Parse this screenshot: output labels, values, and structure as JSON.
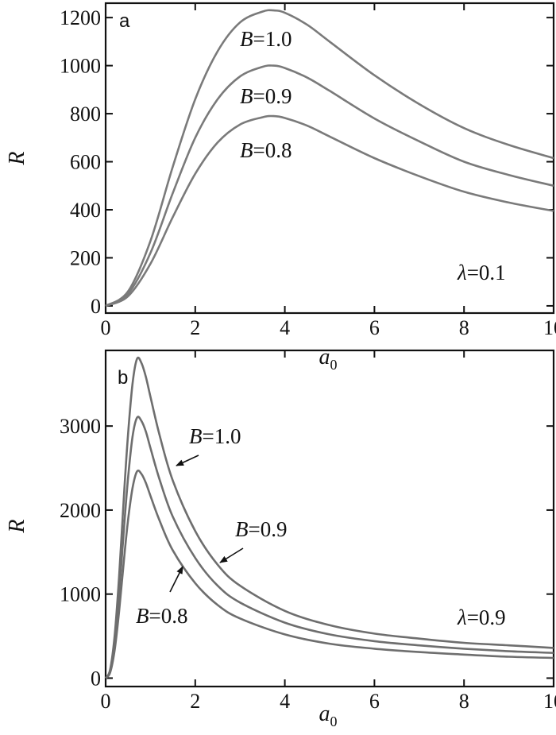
{
  "chart_data": [
    {
      "type": "line",
      "panel": "a",
      "xlabel": "a",
      "xlabel_sub": "0",
      "ylabel": "R",
      "xlim": [
        0,
        10
      ],
      "ylim": [
        -30,
        1260
      ],
      "xticks": [
        0,
        2,
        4,
        6,
        8,
        10
      ],
      "yticks": [
        0,
        200,
        400,
        600,
        800,
        1000,
        1200
      ],
      "grid": false,
      "parameter_label": {
        "symbol": "λ",
        "text": "=0.1"
      },
      "series": [
        {
          "name": "B=1.0",
          "label_symbol": "B",
          "label_value": "=1.0",
          "x": [
            0,
            0.5,
            1,
            1.5,
            2,
            2.5,
            3,
            3.5,
            3.75,
            4,
            4.5,
            5,
            6,
            7,
            8,
            9,
            10
          ],
          "y": [
            0,
            60,
            270,
            580,
            860,
            1060,
            1180,
            1225,
            1230,
            1220,
            1170,
            1100,
            960,
            840,
            740,
            670,
            615
          ]
        },
        {
          "name": "B=0.9",
          "label_symbol": "B",
          "label_value": "=0.9",
          "x": [
            0,
            0.5,
            1,
            1.5,
            2,
            2.5,
            3,
            3.5,
            3.75,
            4,
            4.5,
            5,
            6,
            7,
            8,
            9,
            10
          ],
          "y": [
            0,
            50,
            220,
            470,
            700,
            860,
            955,
            995,
            1000,
            990,
            950,
            895,
            780,
            685,
            600,
            545,
            500
          ]
        },
        {
          "name": "B=0.8",
          "label_symbol": "B",
          "label_value": "=0.8",
          "x": [
            0,
            0.5,
            1,
            1.5,
            2,
            2.5,
            3,
            3.5,
            3.75,
            4,
            4.5,
            5,
            6,
            7,
            8,
            9,
            10
          ],
          "y": [
            0,
            40,
            175,
            370,
            550,
            680,
            755,
            785,
            790,
            782,
            750,
            705,
            615,
            540,
            475,
            430,
            395
          ]
        }
      ]
    },
    {
      "type": "line",
      "panel": "b",
      "xlabel": "a",
      "xlabel_sub": "0",
      "ylabel": "R",
      "xlim": [
        0,
        10
      ],
      "ylim": [
        -100,
        3900
      ],
      "xticks": [
        0,
        2,
        4,
        6,
        8,
        10
      ],
      "yticks": [
        0,
        1000,
        2000,
        3000
      ],
      "grid": false,
      "parameter_label": {
        "symbol": "λ",
        "text": "=0.9"
      },
      "series": [
        {
          "name": "B=1.0",
          "label_symbol": "B",
          "label_value": "=1.0",
          "x": [
            0,
            0.1,
            0.2,
            0.3,
            0.4,
            0.5,
            0.6,
            0.7,
            0.8,
            0.9,
            1.0,
            1.2,
            1.5,
            2,
            2.5,
            3,
            4,
            5,
            6,
            7,
            8,
            9,
            10
          ],
          "y": [
            0,
            100,
            500,
            1200,
            2100,
            2900,
            3500,
            3800,
            3750,
            3580,
            3350,
            2900,
            2350,
            1750,
            1350,
            1100,
            800,
            630,
            530,
            470,
            420,
            390,
            360
          ]
        },
        {
          "name": "B=0.9",
          "label_symbol": "B",
          "label_value": "=0.9",
          "x": [
            0,
            0.1,
            0.2,
            0.3,
            0.4,
            0.5,
            0.6,
            0.7,
            0.8,
            0.9,
            1.0,
            1.2,
            1.5,
            2,
            2.5,
            3,
            4,
            5,
            6,
            7,
            8,
            9,
            10
          ],
          "y": [
            0,
            80,
            420,
            1000,
            1720,
            2380,
            2870,
            3100,
            3060,
            2930,
            2740,
            2370,
            1920,
            1430,
            1100,
            900,
            660,
            520,
            440,
            390,
            350,
            320,
            300
          ]
        },
        {
          "name": "B=0.8",
          "label_symbol": "B",
          "label_value": "=0.8",
          "x": [
            0,
            0.1,
            0.2,
            0.3,
            0.4,
            0.5,
            0.6,
            0.7,
            0.8,
            0.9,
            1.0,
            1.2,
            1.5,
            2,
            2.5,
            3,
            4,
            5,
            6,
            7,
            8,
            9,
            10
          ],
          "y": [
            0,
            65,
            330,
            790,
            1360,
            1880,
            2260,
            2460,
            2430,
            2320,
            2170,
            1880,
            1520,
            1130,
            870,
            710,
            520,
            410,
            350,
            310,
            280,
            255,
            240
          ]
        }
      ]
    }
  ]
}
